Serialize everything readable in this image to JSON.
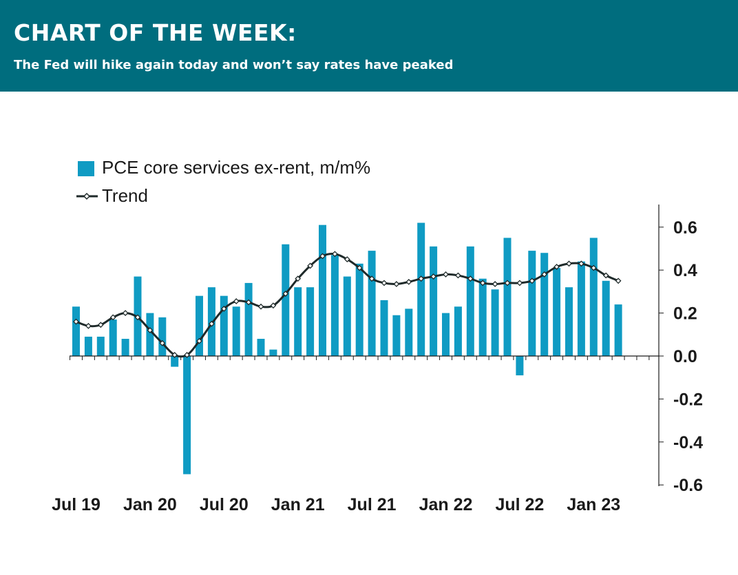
{
  "header": {
    "title": "CHART OF THE WEEK:",
    "subtitle": "The Fed will hike again today and won’t say rates have peaked"
  },
  "colors": {
    "header_bg": "#006d7e",
    "bar": "#0f9bc3",
    "trend": "#1f2a2a",
    "marker_fill": "#ffffff"
  },
  "chart_data": {
    "type": "bar",
    "legend": {
      "placement": "top-left",
      "bar_label": "PCE core services ex-rent, m/m%",
      "line_label": "Trend"
    },
    "ylim": [
      -0.6,
      0.7
    ],
    "yaxis_side": "right",
    "y_ticks": [
      0.6,
      0.4,
      0.2,
      0.0,
      -0.2,
      -0.4,
      -0.6
    ],
    "y_tick_labels": [
      "0.6",
      "0.4",
      "0.2",
      "0.0",
      "-0.2",
      "-0.4",
      "-0.6"
    ],
    "x_tick_labels": [
      "Jul 19",
      "Jan 20",
      "Jul 20",
      "Jan 21",
      "Jul 21",
      "Jan 22",
      "Jul 22",
      "Jan 23"
    ],
    "x_tick_label_positions": [
      0,
      6,
      12,
      18,
      24,
      30,
      36,
      42
    ],
    "categories": [
      "Jul 19",
      "Aug 19",
      "Sep 19",
      "Oct 19",
      "Nov 19",
      "Dec 19",
      "Jan 20",
      "Feb 20",
      "Mar 20",
      "Apr 20",
      "May 20",
      "Jun 20",
      "Jul 20",
      "Aug 20",
      "Sep 20",
      "Oct 20",
      "Nov 20",
      "Dec 20",
      "Jan 21",
      "Feb 21",
      "Mar 21",
      "Apr 21",
      "May 21",
      "Jun 21",
      "Jul 21",
      "Aug 21",
      "Sep 21",
      "Oct 21",
      "Nov 21",
      "Dec 21",
      "Jan 22",
      "Feb 22",
      "Mar 22",
      "Apr 22",
      "May 22",
      "Jun 22",
      "Jul 22",
      "Aug 22",
      "Sep 22",
      "Oct 22",
      "Nov 22",
      "Dec 22",
      "Jan 23",
      "Feb 23",
      "Mar 23",
      "Apr 23",
      "May 23",
      "Jun 23"
    ],
    "series": [
      {
        "name": "PCE core services ex-rent, m/m%",
        "type": "bar",
        "values": [
          0.23,
          0.09,
          0.09,
          0.17,
          0.08,
          0.37,
          0.2,
          0.18,
          -0.05,
          -0.55,
          0.28,
          0.32,
          0.28,
          0.23,
          0.34,
          0.08,
          0.03,
          0.52,
          0.32,
          0.32,
          0.61,
          0.47,
          0.37,
          0.43,
          0.49,
          0.26,
          0.19,
          0.22,
          0.62,
          0.51,
          0.2,
          0.23,
          0.51,
          0.36,
          0.31,
          0.55,
          -0.09,
          0.49,
          0.48,
          0.41,
          0.32,
          0.44,
          0.55,
          0.35,
          0.24,
          null,
          null,
          null
        ]
      },
      {
        "name": "Trend",
        "type": "line",
        "values": [
          0.16,
          0.14,
          0.145,
          0.18,
          0.2,
          0.18,
          0.12,
          0.06,
          0.005,
          0.005,
          0.07,
          0.15,
          0.22,
          0.255,
          0.25,
          0.23,
          0.235,
          0.29,
          0.36,
          0.42,
          0.465,
          0.475,
          0.45,
          0.41,
          0.36,
          0.34,
          0.335,
          0.345,
          0.36,
          0.37,
          0.38,
          0.375,
          0.36,
          0.34,
          0.335,
          0.34,
          0.34,
          0.35,
          0.38,
          0.415,
          0.43,
          0.43,
          0.41,
          0.375,
          0.35,
          null,
          null,
          null
        ]
      }
    ]
  }
}
